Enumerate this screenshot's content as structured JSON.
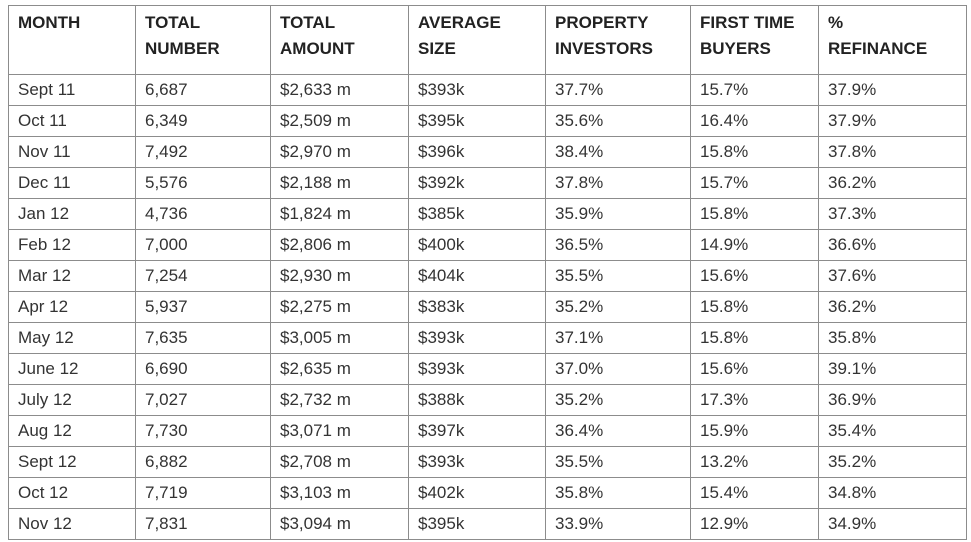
{
  "table": {
    "header": [
      [
        "MONTH"
      ],
      [
        "TOTAL",
        "NUMBER"
      ],
      [
        "TOTAL",
        "AMOUNT"
      ],
      [
        "AVERAGE",
        "SIZE"
      ],
      [
        "PROPERTY",
        "INVESTORS"
      ],
      [
        "FIRST TIME",
        "BUYERS"
      ],
      [
        "%",
        "REFINANCE"
      ]
    ],
    "rows": [
      [
        "Sept 11",
        "6,687",
        "$2,633 m",
        "$393k",
        "37.7%",
        "15.7%",
        "37.9%"
      ],
      [
        "Oct 11",
        "6,349",
        "$2,509 m",
        "$395k",
        "35.6%",
        "16.4%",
        "37.9%"
      ],
      [
        "Nov 11",
        "7,492",
        "$2,970 m",
        "$396k",
        "38.4%",
        "15.8%",
        "37.8%"
      ],
      [
        "Dec 11",
        "5,576",
        "$2,188 m",
        "$392k",
        "37.8%",
        "15.7%",
        "36.2%"
      ],
      [
        "Jan 12",
        "4,736",
        "$1,824 m",
        "$385k",
        "35.9%",
        "15.8%",
        "37.3%"
      ],
      [
        "Feb 12",
        "7,000",
        "$2,806 m",
        "$400k",
        "36.5%",
        "14.9%",
        "36.6%"
      ],
      [
        "Mar 12",
        "7,254",
        "$2,930 m",
        "$404k",
        "35.5%",
        "15.6%",
        "37.6%"
      ],
      [
        "Apr 12",
        "5,937",
        "$2,275 m",
        "$383k",
        "35.2%",
        "15.8%",
        "36.2%"
      ],
      [
        "May 12",
        "7,635",
        "$3,005 m",
        "$393k",
        "37.1%",
        "15.8%",
        "35.8%"
      ],
      [
        "June 12",
        "6,690",
        "$2,635 m",
        "$393k",
        "37.0%",
        "15.6%",
        "39.1%"
      ],
      [
        "July 12",
        "7,027",
        "$2,732 m",
        "$388k",
        "35.2%",
        "17.3%",
        "36.9%"
      ],
      [
        "Aug 12",
        "7,730",
        "$3,071 m",
        "$397k",
        "36.4%",
        "15.9%",
        "35.4%"
      ],
      [
        "Sept 12",
        "6,882",
        "$2,708 m",
        "$393k",
        "35.5%",
        "13.2%",
        "35.2%"
      ],
      [
        "Oct 12",
        "7,719",
        "$3,103 m",
        "$402k",
        "35.8%",
        "15.4%",
        "34.8%"
      ],
      [
        "Nov 12",
        "7,831",
        "$3,094 m",
        "$395k",
        "33.9%",
        "12.9%",
        "34.9%"
      ]
    ]
  }
}
